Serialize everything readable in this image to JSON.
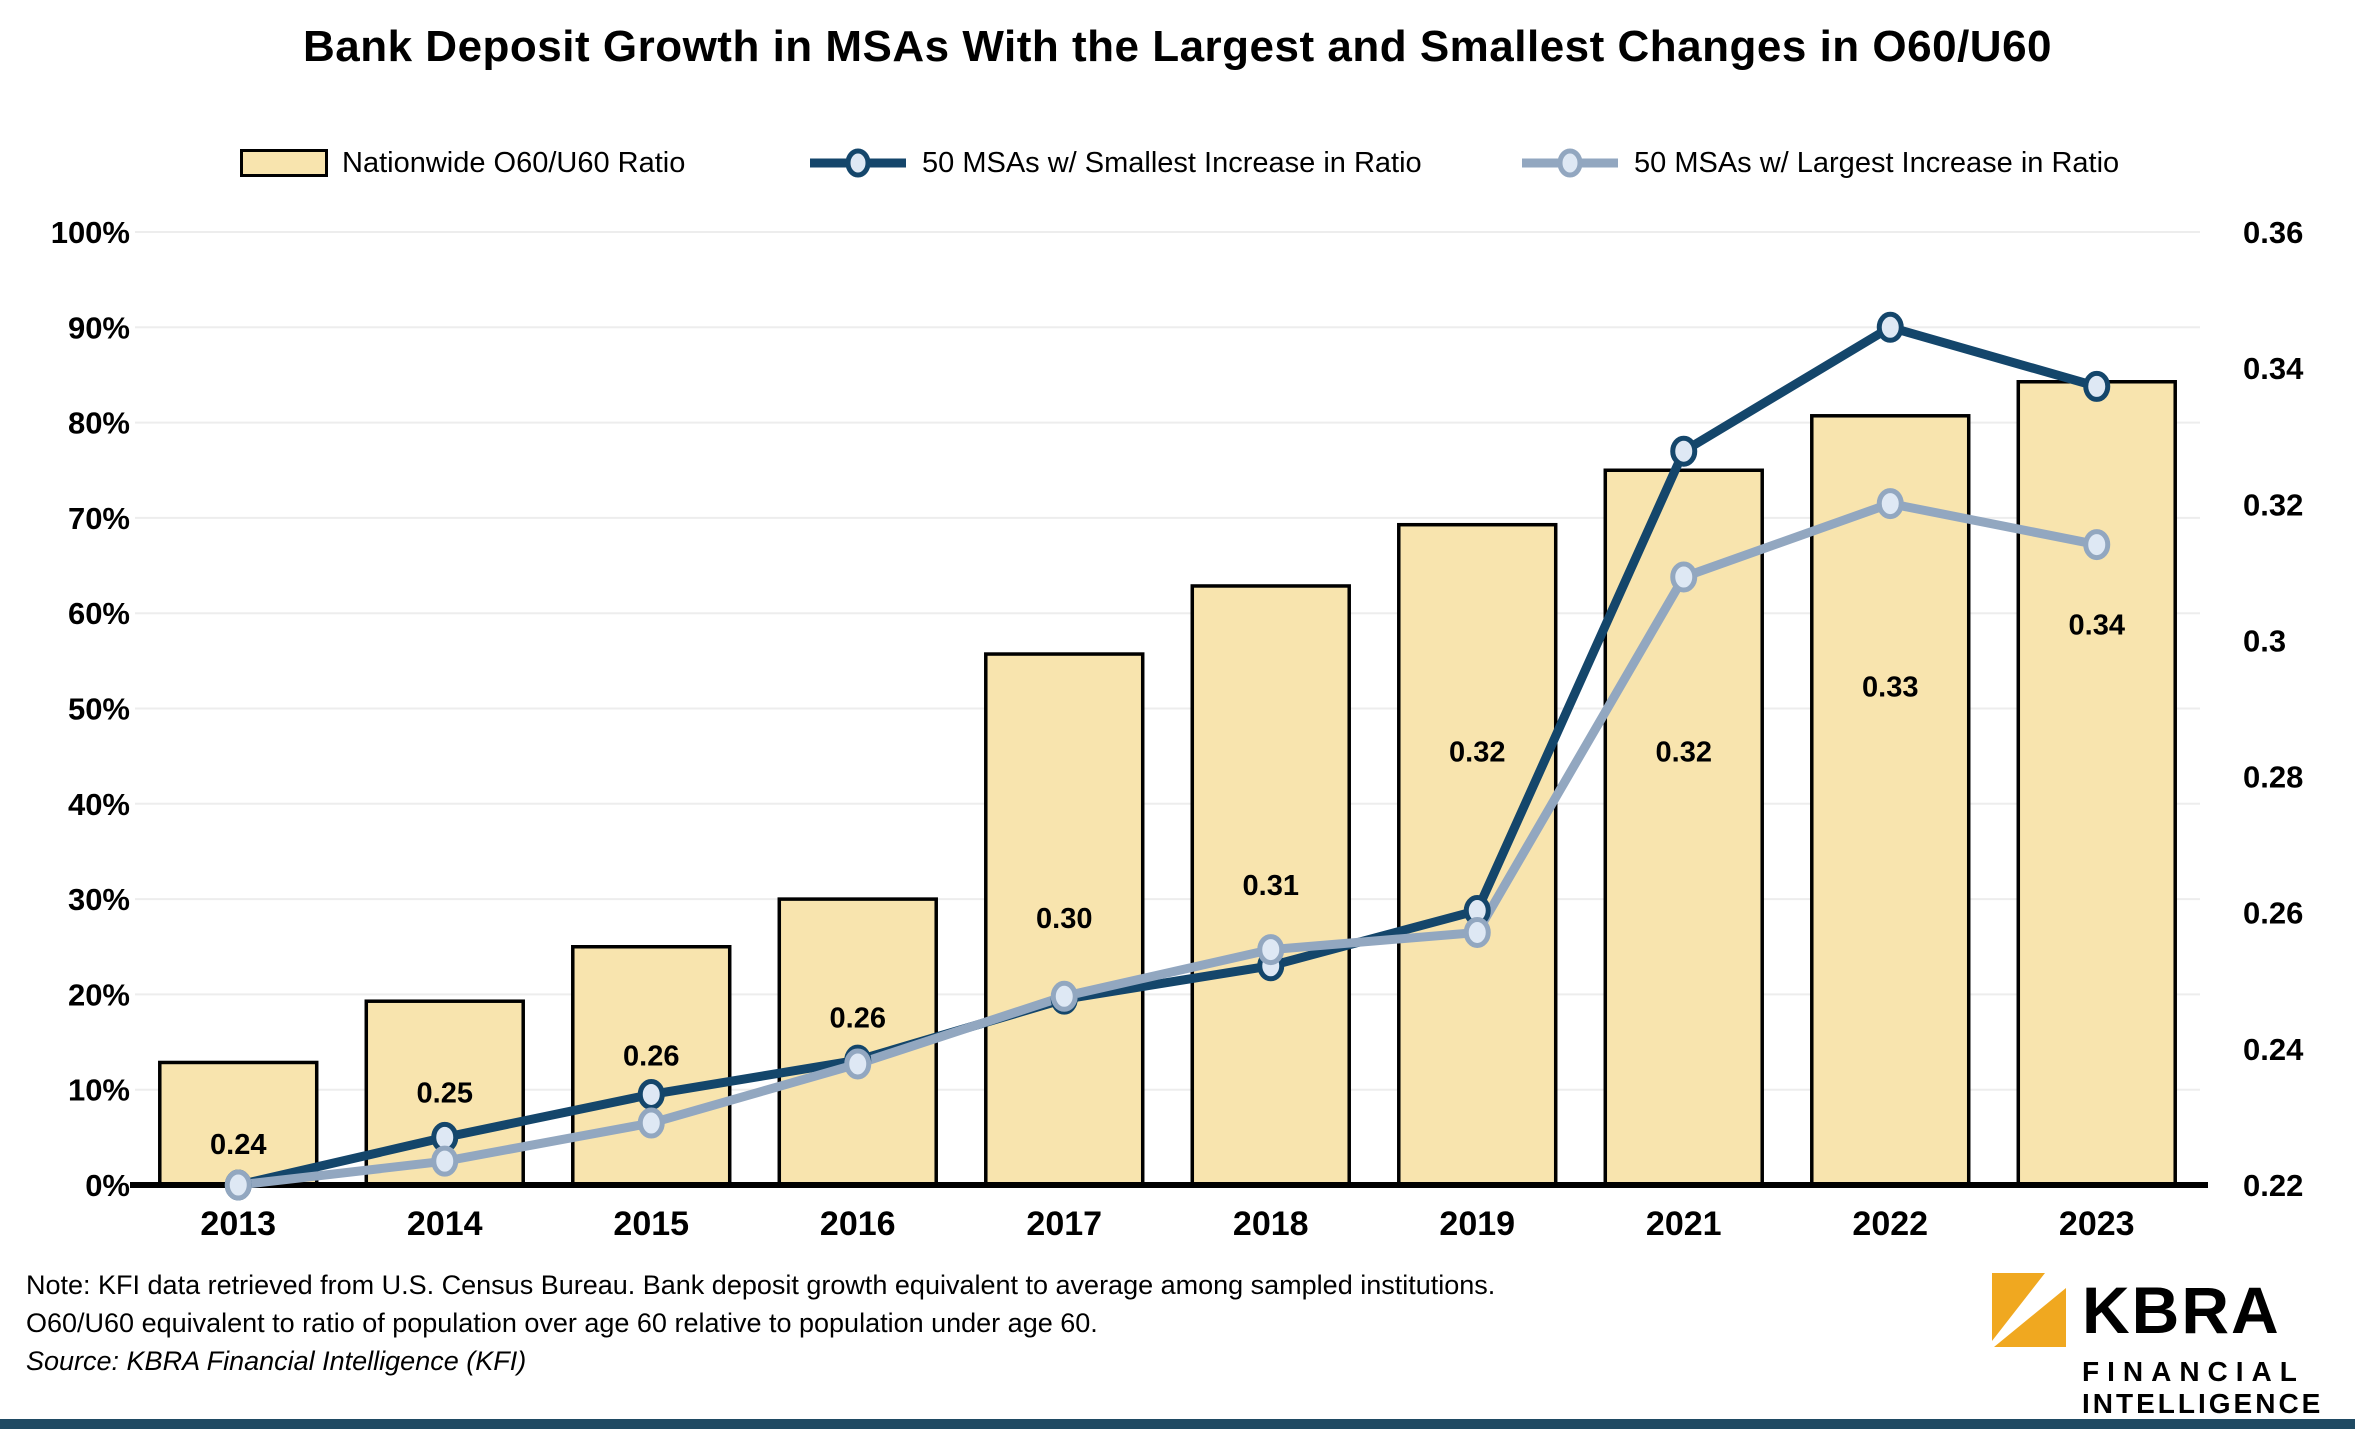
{
  "title": "Bank Deposit Growth in MSAs With the Largest and Smallest Changes in O60/U60",
  "legend": [
    {
      "label": "Nationwide O60/U60 Ratio",
      "type": "bar",
      "fill": "#F8E4AE",
      "stroke": "#000000"
    },
    {
      "label": "50 MSAs w/ Smallest Increase in Ratio",
      "type": "line",
      "color": "#14466B"
    },
    {
      "label": "50 MSAs w/ Largest Increase in Ratio",
      "type": "line",
      "color": "#92A7C0"
    }
  ],
  "chart_data": {
    "type": "bar",
    "subtype": "combo-bar-line",
    "categories": [
      "2013",
      "2014",
      "2015",
      "2016",
      "2017",
      "2018",
      "2019",
      "2021",
      "2022",
      "2023"
    ],
    "bar_series": {
      "name": "Nationwide O60/U60 Ratio",
      "axis": "right",
      "values": [
        0.238,
        0.247,
        0.255,
        0.262,
        0.298,
        0.308,
        0.317,
        0.325,
        0.333,
        0.338
      ],
      "labels": [
        "0.24",
        "0.25",
        "0.26",
        "0.26",
        "0.30",
        "0.31",
        "0.32",
        "0.32",
        "0.33",
        "0.34"
      ],
      "label_y_pct": [
        4.3,
        9.7,
        13.6,
        17.6,
        28,
        31.5,
        45.5,
        45.5,
        52.3,
        58.8
      ],
      "fill": "#F8E4AE",
      "stroke": "#000000"
    },
    "series": [
      {
        "name": "50 MSAs w/ Smallest Increase in Ratio",
        "axis": "left",
        "color": "#14466B",
        "marker_fill": "#DEE8F4",
        "values": [
          0,
          5.0,
          9.5,
          13.1,
          19.5,
          23.0,
          28.8,
          77.0,
          90.0,
          83.8
        ]
      },
      {
        "name": "50 MSAs w/ Largest Increase in Ratio",
        "axis": "left",
        "color": "#92A7C0",
        "marker_fill": "#DEE8F4",
        "values": [
          0,
          2.5,
          6.5,
          12.7,
          19.8,
          24.7,
          26.5,
          63.8,
          71.5,
          67.2
        ]
      }
    ],
    "left_axis": {
      "min": 0,
      "max": 100,
      "ticks": [
        "0%",
        "10%",
        "20%",
        "30%",
        "40%",
        "50%",
        "60%",
        "70%",
        "80%",
        "90%",
        "100%"
      ]
    },
    "right_axis": {
      "min": 0.22,
      "max": 0.36,
      "ticks": [
        "0.22",
        "0.24",
        "0.26",
        "0.28",
        "0.3",
        "0.32",
        "0.34",
        "0.36"
      ]
    },
    "grid": true,
    "gridline_color": "#EDEDED",
    "legend_position": "top"
  },
  "footnote": {
    "line1": "Note: KFI data retrieved from U.S. Census Bureau. Bank deposit growth equivalent to average among sampled institutions.",
    "line2": "O60/U60 equivalent to ratio of population over age 60 relative to population under age 60.",
    "line3": "Source: KBRA Financial Intelligence (KFI)"
  },
  "logo": {
    "brand": "KBRA",
    "line1": "FINANCIAL",
    "line2": "INTELLIGENCE",
    "gold": "#F0A820"
  },
  "colors": {
    "background": "#FFFFFF",
    "bar_fill": "#F8E4AE",
    "bar_border": "#000000",
    "line_smallest": "#14466B",
    "line_largest": "#92A7C0",
    "marker_fill": "#DEE8F4",
    "gridline": "#EDEDED",
    "baseline": "#000000",
    "footer_bar": "#1F4A63",
    "logo_gold": "#F0A820"
  }
}
